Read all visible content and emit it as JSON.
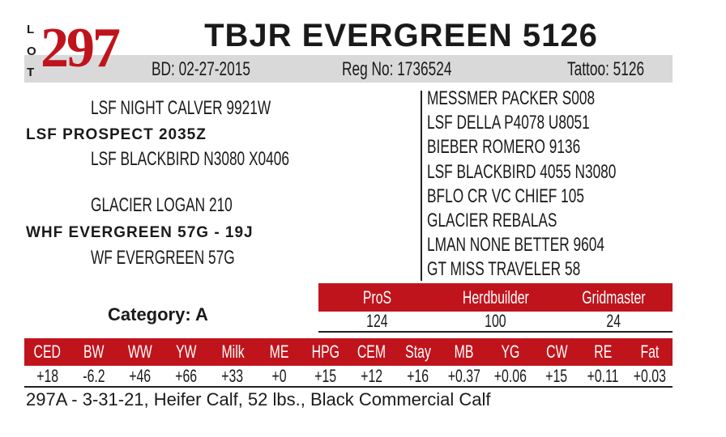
{
  "lot": {
    "letters": [
      "L",
      "O",
      "T"
    ],
    "number": "297"
  },
  "title": "TBJR EVERGREEN 5126",
  "info": {
    "bd": "BD: 02-27-2015",
    "reg": "Reg No: 1736524",
    "tattoo": "Tattoo: 5126"
  },
  "pedigree": {
    "sire_side": {
      "sire_of_sire": "LSF NIGHT CALVER 9921W",
      "sire": "LSF PROSPECT 2035Z",
      "dam_of_sire": "LSF BLACKBIRD N3080 X0406"
    },
    "dam_side": {
      "sire_of_dam": "GLACIER LOGAN 210",
      "dam": "WHF EVERGREEN 57G - 19J",
      "dam_of_dam": "WF EVERGREEN 57G"
    },
    "right": [
      "MESSMER PACKER S008",
      "LSF DELLA P4078 U8051",
      "BIEBER ROMERO 9136",
      "LSF BLACKBIRD 4055 N3080",
      "BFLO CR VC CHIEF 105",
      "GLACIER REBALAS",
      "LMAN NONE BETTER 9604",
      "GT MISS TRAVELER 58"
    ]
  },
  "category": "Category: A",
  "indexes": {
    "headers": [
      "ProS",
      "Herdbuilder",
      "Gridmaster"
    ],
    "values": [
      "124",
      "100",
      "24"
    ]
  },
  "epds": {
    "headers": [
      "CED",
      "BW",
      "WW",
      "YW",
      "Milk",
      "ME",
      "HPG",
      "CEM",
      "Stay",
      "MB",
      "YG",
      "CW",
      "RE",
      "Fat"
    ],
    "values": [
      "+18",
      "-6.2",
      "+46",
      "+66",
      "+33",
      "+0",
      "+15",
      "+12",
      "+16",
      "+0.37",
      "+0.06",
      "+15",
      "+0.11",
      "+0.03"
    ]
  },
  "footer": "297A - 3-31-21, Heifer Calf, 52 lbs., Black Commercial Calf",
  "colors": {
    "accent_red": "#c0141c",
    "bar_gray": "#d9d9da"
  }
}
